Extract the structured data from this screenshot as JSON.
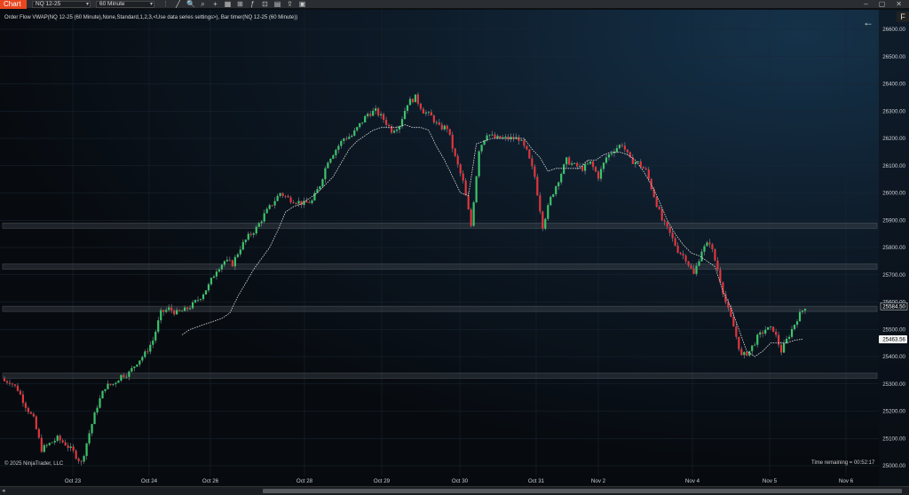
{
  "toolbar": {
    "chart_tab": "Chart",
    "instrument": "NQ 12-25",
    "interval": "60 Minute",
    "tools": [
      "bar-type-icon",
      "draw-line-icon",
      "zoom-icon",
      "magnify-icon",
      "crosshair-icon",
      "properties-icon",
      "strategies-icon",
      "indicators-icon",
      "templates-icon",
      "data-box-icon",
      "share-icon",
      "chart-trader-icon"
    ],
    "tool_glyphs": [
      "⫶",
      "╱",
      "🔍",
      "⌕",
      "+",
      "▦",
      "⊞",
      "ƒ",
      "⊡",
      "▤",
      "⇪",
      "▣"
    ],
    "window_controls": [
      "–",
      "▢",
      "✕"
    ]
  },
  "indicator_label": "Order Flow VWAP(NQ 12-25 (60 Minute),None,Standard,1,2,3,<Use data series settings>), Bar timer(NQ 12-25 (60 Minute))",
  "copyright": "© 2025 NinjaTrader, LLC",
  "time_remaining": "Time remaining = 00:52:17",
  "f_badge": "F",
  "back_arrow": "←",
  "chart_data": {
    "type": "candlestick",
    "y_ticks": [
      "26600.00",
      "26500.00",
      "26400.00",
      "26300.00",
      "26200.00",
      "26100.00",
      "26000.00",
      "25900.00",
      "25800.00",
      "25700.00",
      "25600.00",
      "25500.00",
      "25400.00",
      "25300.00",
      "25200.00",
      "25100.00",
      "25000.00"
    ],
    "y_tick_values": [
      26600,
      26500,
      26400,
      26300,
      26200,
      26100,
      26000,
      25900,
      25800,
      25700,
      25600,
      25500,
      25400,
      25300,
      25200,
      25100,
      25000
    ],
    "x_ticks": [
      "Oct 23",
      "Oct 24",
      "Oct 26",
      "Oct 28",
      "Oct 29",
      "Oct 30",
      "Oct 31",
      "Nov 2",
      "Nov 4",
      "Nov 5",
      "Nov 6"
    ],
    "ylim": [
      24985,
      26630
    ],
    "last_price_label": "25584.50",
    "vwap_label": "25463.56",
    "last_price": 25584.5,
    "vwap_value": 25463.56,
    "horizontal_zones": [
      25880,
      25730,
      25575,
      25330
    ],
    "colors": {
      "up": "#3cc46a",
      "down": "#e0363c",
      "wick": "#8a9098",
      "vwap": "#e6e6e6",
      "zone": "#9aa0a6"
    },
    "path": [
      25310,
      25280,
      25220,
      25170,
      25060,
      25080,
      25100,
      25080,
      25050,
      25010,
      25120,
      25220,
      25290,
      25300,
      25330,
      25340,
      25380,
      25410,
      25460,
      25560,
      25575,
      25560,
      25570,
      25590,
      25620,
      25660,
      25720,
      25750,
      25740,
      25800,
      25840,
      25870,
      25920,
      25960,
      26000,
      25980,
      25970,
      25960,
      25970,
      26030,
      26120,
      26160,
      26200,
      26210,
      26250,
      26290,
      26300,
      26270,
      26230,
      26250,
      26330,
      26350,
      26300,
      26280,
      26240,
      26240,
      26130,
      26040,
      25880,
      26160,
      26220,
      26200,
      26200,
      26200,
      26200,
      26150,
      26060,
      25880,
      25980,
      26050,
      26120,
      26100,
      26090,
      26110,
      26060,
      26130,
      26160,
      26180,
      26120,
      26110,
      26080,
      25990,
      25900,
      25850,
      25790,
      25760,
      25700,
      25790,
      25820,
      25720,
      25600,
      25510,
      25400,
      25420,
      25470,
      25500,
      25500,
      25420,
      25480,
      25540,
      25584
    ],
    "vwap": [
      null,
      null,
      null,
      null,
      null,
      null,
      null,
      null,
      null,
      null,
      null,
      null,
      null,
      null,
      null,
      null,
      null,
      null,
      null,
      null,
      null,
      null,
      25480,
      25500,
      25510,
      25520,
      25530,
      25540,
      25560,
      25620,
      25670,
      25720,
      25760,
      25800,
      25860,
      25930,
      25950,
      25960,
      25980,
      26000,
      26030,
      26060,
      26110,
      26160,
      26190,
      26210,
      26230,
      26240,
      26240,
      26240,
      26250,
      26240,
      26240,
      26230,
      26170,
      26120,
      26060,
      26000,
      25990,
      26180,
      26190,
      26200,
      26200,
      26200,
      26200,
      26200,
      26160,
      26130,
      26080,
      26090,
      26090,
      26090,
      26090,
      26120,
      26120,
      26140,
      26150,
      26150,
      26140,
      26120,
      26080,
      26030,
      25970,
      25900,
      25850,
      25810,
      25780,
      25770,
      25750,
      25730,
      25640,
      25580,
      25500,
      25420,
      25400,
      25420,
      25450,
      25450,
      25450,
      25460,
      25464
    ]
  }
}
